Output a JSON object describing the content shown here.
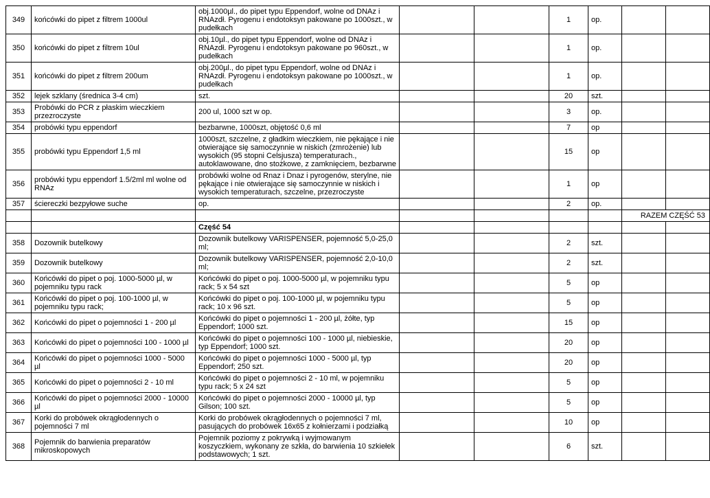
{
  "rows": [
    {
      "num": "349",
      "name": "końcówki do pipet z filtrem 1000ul",
      "desc": "obj.1000µl., do pipet typu Eppendorf, wolne od DNAz i RNAzdł. Pyrogenu i endotoksyn pakowane po 1000szt., w pudełkach",
      "qty": "1",
      "unit": "op."
    },
    {
      "num": "350",
      "name": "końcówki do pipet z filtrem 10ul",
      "desc": "obj.10µl., do pipet typu Eppendorf, wolne od DNAz i RNAzdł. Pyrogenu i endotoksyn pakowane po 960szt., w pudełkach",
      "qty": "1",
      "unit": "op."
    },
    {
      "num": "351",
      "name": "końcówki do pipet z filtrem 200um",
      "desc": "obj.200µl., do pipet typu Eppendorf, wolne od DNAz i RNAzdł. Pyrogenu i endotoksyn pakowane po 1000szt., w pudełkach",
      "qty": "1",
      "unit": "op."
    },
    {
      "num": "352",
      "name": "lejek szklany (średnica 3-4 cm)",
      "desc": "szt.",
      "qty": "20",
      "unit": "szt."
    },
    {
      "num": "353",
      "name": "Probówki do PCR z płaskim wieczkiem przezroczyste",
      "desc": "200 ul, 1000 szt w op.",
      "qty": "3",
      "unit": "op."
    },
    {
      "num": "354",
      "name": "probówki typu eppendorf",
      "desc": "bezbarwne, 1000szt, objętość 0,6 ml",
      "qty": "7",
      "unit": "op"
    },
    {
      "num": "355",
      "name": "probówki typu Eppendorf  1,5 ml",
      "desc": "1000szt, szczelne, z gładkim wieczkiem, nie pękające i nie otwierające się samoczynnie w niskich (zmrożenie) lub wysokich (95 stopni Celsjusza) temperaturach., autoklawowane, dno stożkowe, z zamknięciem, bezbarwne",
      "qty": "15",
      "unit": "op"
    },
    {
      "num": "356",
      "name": "probówki typu eppendorf 1.5/2ml ml wolne od RNAz",
      "desc": "probówki wolne od Rnaz i Dnaz i pyrogenów, sterylne, nie pękające i nie otwierające się samoczynnie w niskich i wysokich temperaturach, szczelne, przezroczyste",
      "qty": "1",
      "unit": "op"
    },
    {
      "num": "357",
      "name": "ściereczki bezpyłowe suche",
      "desc": "op.",
      "qty": "2",
      "unit": "op."
    }
  ],
  "razem_label": "RAZEM CZĘŚĆ 53",
  "section_label": "Część 54",
  "rows2": [
    {
      "num": "358",
      "name": "Dozownik butelkowy",
      "desc": "Dozownik butelkowy VARISPENSER, pojemność 5,0-25,0 ml;",
      "qty": "2",
      "unit": "szt."
    },
    {
      "num": "359",
      "name": "Dozownik butelkowy",
      "desc": "Dozownik butelkowy VARISPENSER, pojemność 2,0-10,0 ml;",
      "qty": "2",
      "unit": "szt."
    },
    {
      "num": "360",
      "name": "Końcówki do pipet o poj. 1000-5000 µl, w pojemniku typu rack",
      "desc": "Końcówki do pipet o poj. 1000-5000 µl, w pojemniku typu rack; 5 x 54 szt",
      "qty": "5",
      "unit": "op"
    },
    {
      "num": "361",
      "name": "Końcówki do pipet o poj. 100-1000 µl, w pojemniku typu rack;",
      "desc": "Końcówki do pipet o poj. 100-1000 µl, w pojemniku typu rack; 10 x 96 szt.",
      "qty": "5",
      "unit": "op"
    },
    {
      "num": "362",
      "name": "Końcówki do pipet o pojemności 1 - 200 µl",
      "desc": "Końcówki do pipet o pojemności 1 - 200 µl, żółte, typ Eppendorf; 1000 szt.",
      "qty": "15",
      "unit": "op"
    },
    {
      "num": "363",
      "name": "Końcówki do pipet o pojemności 100 - 1000 µl",
      "desc": "Końcówki do pipet o pojemności 100 - 1000 µl, niebieskie, typ Eppendorf; 1000 szt.",
      "qty": "20",
      "unit": "op"
    },
    {
      "num": "364",
      "name": "Końcówki do pipet o pojemności 1000 - 5000 µl",
      "desc": "Końcówki do pipet o pojemności 1000 - 5000 µl, typ Eppendorf; 250 szt.",
      "qty": "20",
      "unit": "op"
    },
    {
      "num": "365",
      "name": "Końcówki do pipet o pojemności 2 - 10 ml",
      "desc": "Końcówki do pipet o pojemności 2 - 10 ml, w pojemniku typu rack; 5 x 24 szt",
      "qty": "5",
      "unit": "op"
    },
    {
      "num": "366",
      "name": "Końcówki do pipet o pojemności 2000 - 10000 µl",
      "desc": "Końcówki do pipet o pojemności 2000 - 10000 µl, typ Gilson; 100 szt.",
      "qty": "5",
      "unit": "op"
    },
    {
      "num": "367",
      "name": "Korki do probówek okrągłodennych o pojemności 7 ml",
      "desc": "Korki do probówek okrągłodennych o pojemności 7 ml, pasujących do probówek 16x65 z kołnierzami i podziałką",
      "qty": "10",
      "unit": "op"
    },
    {
      "num": "368",
      "name": "Pojemnik do barwienia preparatów mikroskopowych",
      "desc": "Pojemnik poziomy z pokrywką i wyjmowanym koszyczkiem, wykonany ze szkła, do barwienia 10 szkiełek podstawowych; 1 szt.",
      "qty": "6",
      "unit": "szt."
    }
  ]
}
